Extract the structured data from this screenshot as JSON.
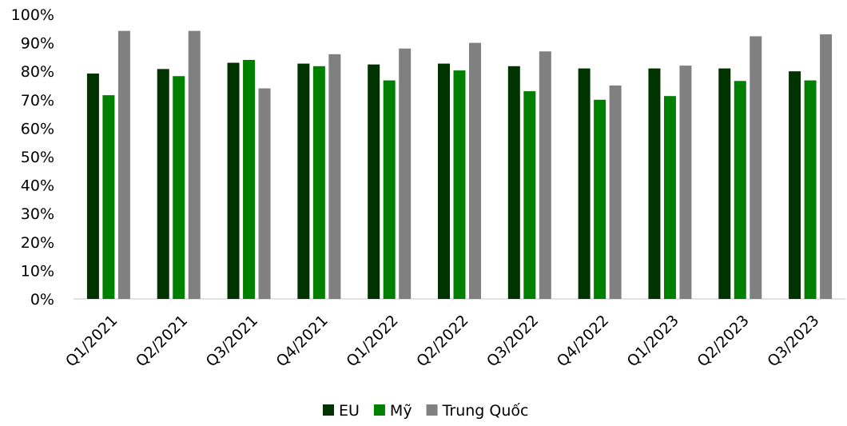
{
  "chart_data": {
    "type": "bar",
    "categories": [
      "Q1/2021",
      "Q2/2021",
      "Q3/2021",
      "Q4/2021",
      "Q1/2022",
      "Q2/2022",
      "Q3/2022",
      "Q4/2022",
      "Q1/2023",
      "Q2/2023",
      "Q3/2023"
    ],
    "series": [
      {
        "name": "EU",
        "color": "#003300",
        "values": [
          79.2,
          80.8,
          83.0,
          82.7,
          82.4,
          82.7,
          81.8,
          81.0,
          81.0,
          81.0,
          80.0
        ]
      },
      {
        "name": "Mỹ",
        "color": "#008000",
        "values": [
          71.6,
          78.3,
          84.0,
          81.8,
          76.8,
          80.3,
          73.0,
          70.0,
          71.3,
          76.6,
          76.8
        ]
      },
      {
        "name": "Trung Quốc",
        "color": "#808080",
        "values": [
          94.2,
          94.2,
          74.0,
          86.0,
          88.0,
          90.0,
          87.0,
          75.0,
          82.0,
          92.3,
          93.0
        ]
      }
    ],
    "yticks": [
      "0%",
      "10%",
      "20%",
      "30%",
      "40%",
      "50%",
      "60%",
      "70%",
      "80%",
      "90%",
      "100%"
    ],
    "ylim": [
      0,
      100
    ],
    "grid": false,
    "legend": "bottom-center",
    "title": "",
    "xlabel": "",
    "ylabel": ""
  }
}
